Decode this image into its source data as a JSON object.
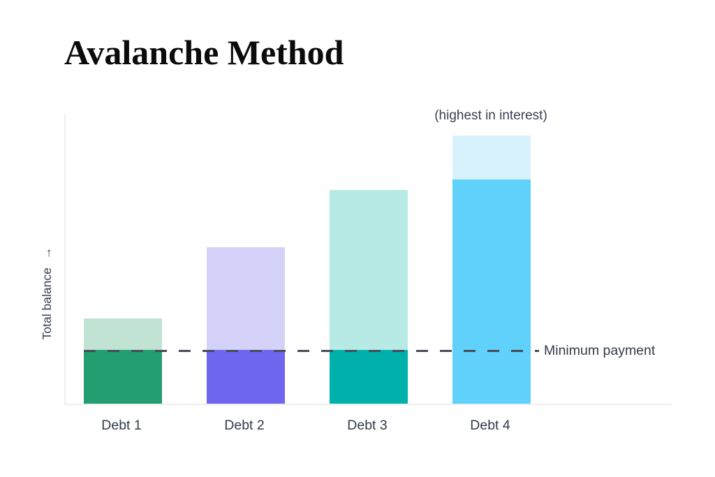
{
  "page": {
    "title": "Avalanche Method"
  },
  "chart_data": {
    "type": "bar",
    "stacked": true,
    "title": "Avalanche Method",
    "annotation": "(highest in interest)",
    "ylabel": "Total balance",
    "ylabel_arrow": "→",
    "xlabel": "",
    "categories": [
      "Debt 1",
      "Debt 2",
      "Debt 3",
      "Debt 4"
    ],
    "series": [
      {
        "name": "bottom-segment",
        "values": [
          18.5,
          18.5,
          18.5,
          77.0
        ],
        "colors": [
          "#239e70",
          "#6f66ef",
          "#00b1ab",
          "#5fd1fb"
        ]
      },
      {
        "name": "top-segment",
        "values": [
          10.8,
          35.2,
          54.9,
          15.1
        ],
        "colors": [
          "#c1e3d3",
          "#d4d2f8",
          "#b7eae5",
          "#d7f1fd"
        ]
      }
    ],
    "totals": [
      29.3,
      53.7,
      73.4,
      92.1
    ],
    "reference_line": {
      "label": "Minimum payment",
      "value": 18.5,
      "style": "dashed",
      "color": "#474c59"
    },
    "ylim": [
      0,
      100
    ],
    "grid": false,
    "legend": "none",
    "axis_color": "#eeeeee",
    "text_color": "#333a49",
    "title_color": "#0b0b0c",
    "background_color": "#ffffff"
  }
}
